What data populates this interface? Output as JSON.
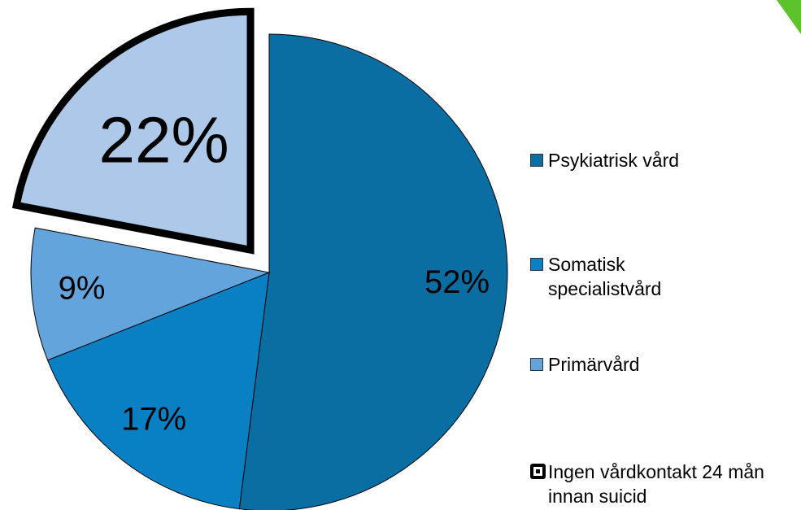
{
  "chart_data": {
    "type": "pie",
    "categories": [
      "Psykiatrisk vård",
      "Somatisk specialistvård",
      "Primärvård",
      "Ingen vårdkontakt 24 mån innan suicid"
    ],
    "values": [
      52,
      17,
      9,
      22
    ],
    "value_labels": [
      "52%",
      "17%",
      "9%",
      "22%"
    ],
    "colors": [
      "#0b6ea3",
      "#0a80c4",
      "#63a4dc",
      "#adc8e8"
    ],
    "exploded": [
      false,
      false,
      false,
      true
    ],
    "legend": "right"
  }
}
